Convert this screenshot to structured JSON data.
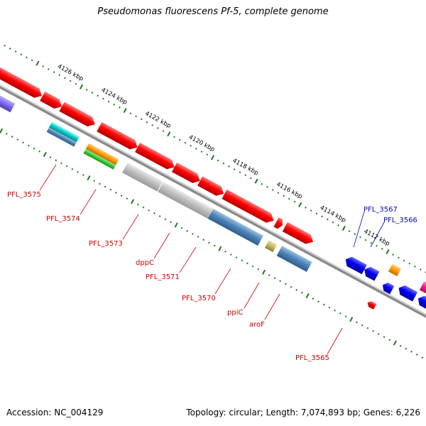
{
  "title": "Pseudomonas fluorescens Pf-5, complete genome",
  "footer": {
    "accession": "Accession: NC_004129",
    "summary": "Topology: circular; Length: 7,074,893 bp; Genes: 6,226"
  },
  "colors": {
    "backbone": "#8a8a8a",
    "forward_cds": "#ff0000",
    "reverse_cds": "#0000ee",
    "ticks": "#1a7a1a",
    "label_red": "#cc0000",
    "label_blue": "#0000cc"
  },
  "scale_labels": [
    "4126 kbp",
    "4124 kbp",
    "4122 kbp",
    "4120 kbp",
    "4118 kbp",
    "4116 kbp",
    "4114 kbp",
    "4112 kbp"
  ],
  "gene_labels": [
    {
      "text": "PFL_3575",
      "color": "red"
    },
    {
      "text": "PFL_3574",
      "color": "red"
    },
    {
      "text": "PFL_3573",
      "color": "red"
    },
    {
      "text": "dppC",
      "color": "red"
    },
    {
      "text": "PFL_3571",
      "color": "red"
    },
    {
      "text": "PFL_3570",
      "color": "red"
    },
    {
      "text": "ppiC",
      "color": "red"
    },
    {
      "text": "aroF",
      "color": "red"
    },
    {
      "text": "PFL_3565",
      "color": "red"
    },
    {
      "text": "PFL_3567",
      "color": "blue"
    },
    {
      "text": "PFL_3566",
      "color": "blue"
    }
  ]
}
